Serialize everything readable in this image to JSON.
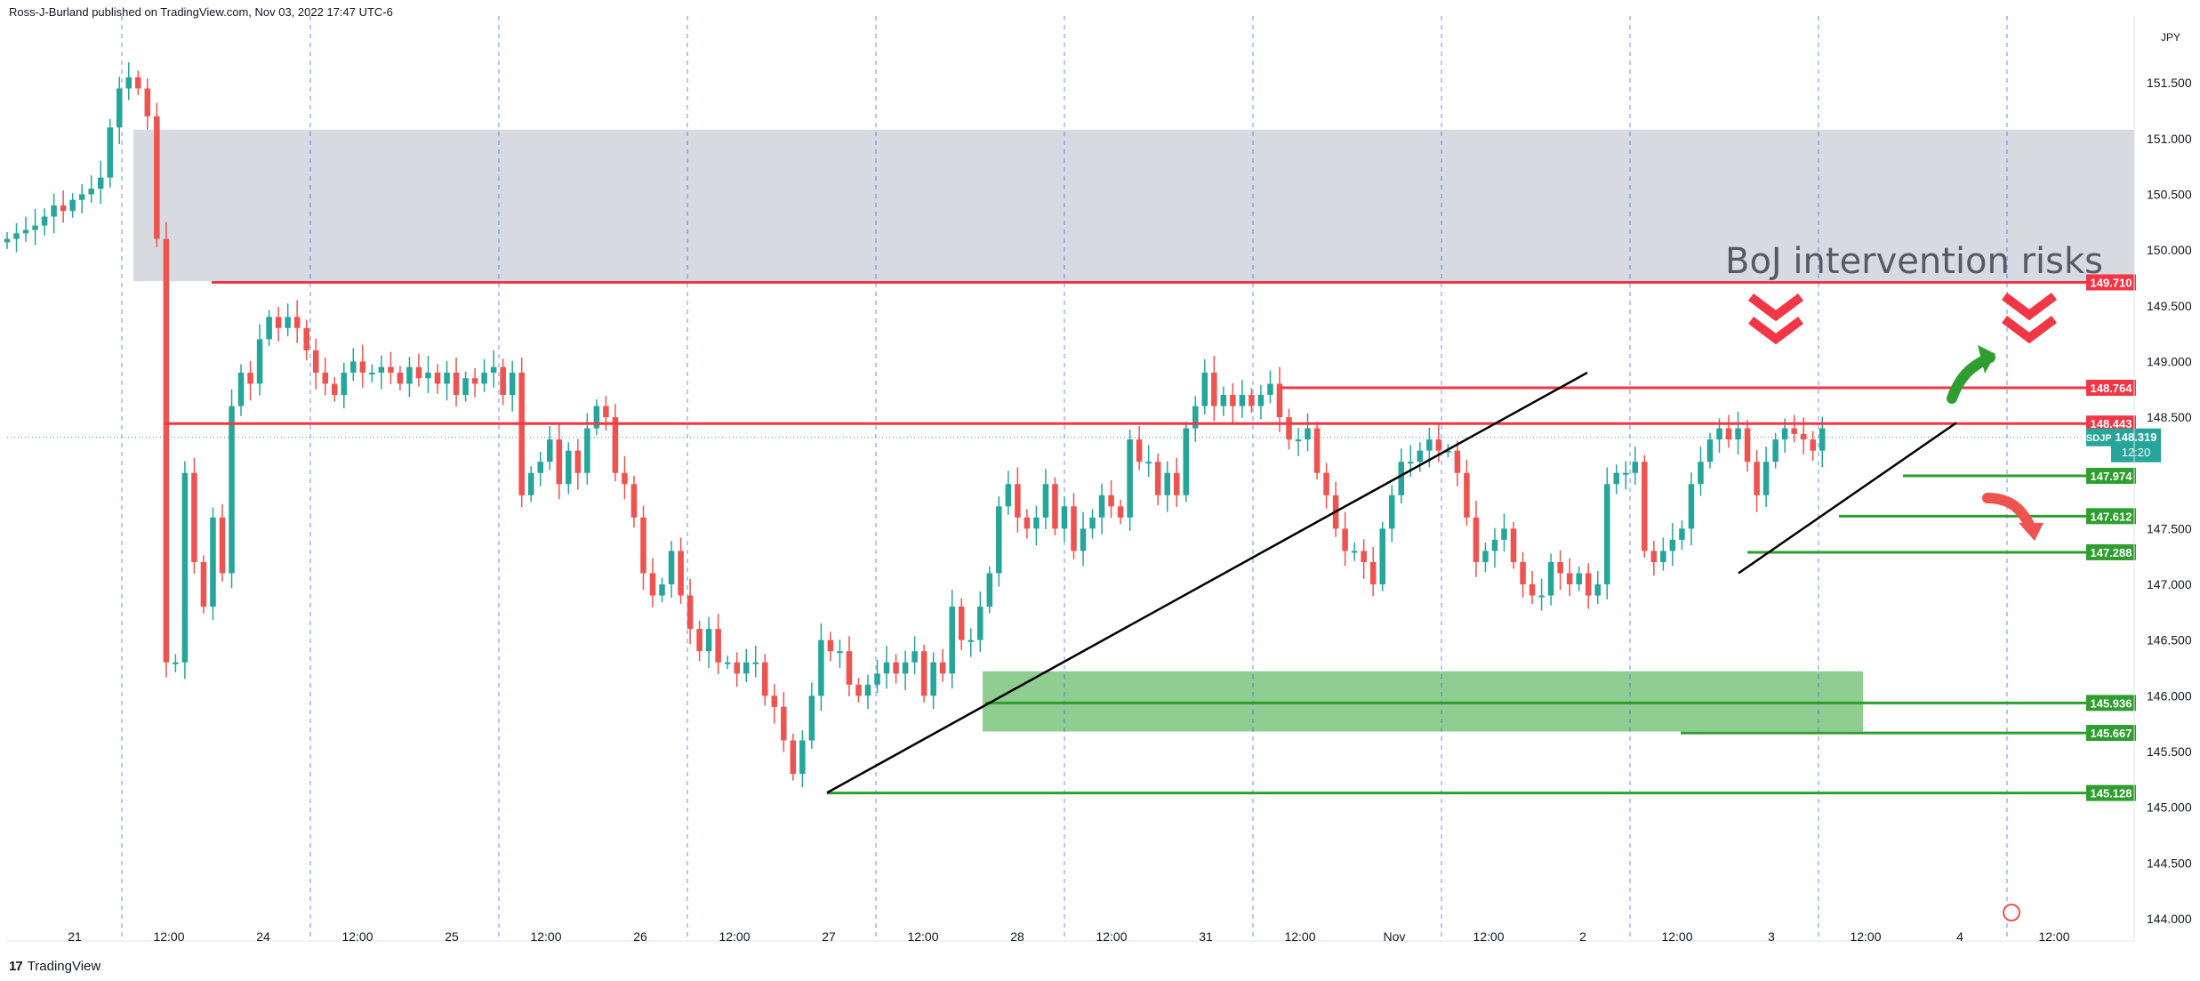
{
  "header": {
    "publisher_line": "Ross-J-Burland published on TradingView.com, Nov 03, 2022 17:47 UTC-6"
  },
  "footer": {
    "brand_logo": "17",
    "brand_name": "TradingView"
  },
  "colors": {
    "up": "#26a69a",
    "down": "#ef5350",
    "resistance": "#f23645",
    "support": "#2e9e2e",
    "supply_zone": "#d1d4dc",
    "demand_zone": "#7cc47c",
    "trendline": "#000000",
    "grid_dash": "#2962ff",
    "symbol_tag": "#26a69a"
  },
  "chart_data": {
    "type": "candlestick",
    "symbol": "USDJPY",
    "currency_label": "JPY",
    "last_price": "148.319",
    "countdown": "12:20",
    "annotation": "BoJ intervention risks",
    "ylim": [
      143.8,
      152.1
    ],
    "y_ticks": [
      "151.500",
      "151.000",
      "150.500",
      "150.000",
      "149.500",
      "149.000",
      "148.500",
      "147.500",
      "147.000",
      "146.500",
      "146.000",
      "145.500",
      "145.000",
      "144.500",
      "144.000"
    ],
    "x_ticks": [
      "21",
      "12:00",
      "24",
      "12:00",
      "25",
      "12:00",
      "26",
      "12:00",
      "27",
      "12:00",
      "28",
      "12:00",
      "31",
      "12:00",
      "Nov",
      "12:00",
      "2",
      "12:00",
      "3",
      "12:00",
      "4",
      "12:00"
    ],
    "resistance_levels": [
      {
        "label": "149.710",
        "value": 149.71
      },
      {
        "label": "148.764",
        "value": 148.764
      },
      {
        "label": "148.443",
        "value": 148.443
      }
    ],
    "support_levels": [
      {
        "label": "147.974",
        "value": 147.974
      },
      {
        "label": "147.612",
        "value": 147.612
      },
      {
        "label": "147.288",
        "value": 147.288
      },
      {
        "label": "145.936",
        "value": 145.936
      },
      {
        "label": "145.667",
        "value": 145.667
      },
      {
        "label": "145.128",
        "value": 145.128
      }
    ],
    "supply_zone": [
      149.72,
      151.08
    ],
    "demand_zone": [
      145.68,
      146.22
    ],
    "closes": [
      150.1,
      150.15,
      150.18,
      150.22,
      150.3,
      150.4,
      150.35,
      150.45,
      150.5,
      150.55,
      150.65,
      151.1,
      151.45,
      151.55,
      151.45,
      151.2,
      150.1,
      146.3,
      146.3,
      148.0,
      147.2,
      146.8,
      147.6,
      147.1,
      148.6,
      148.9,
      148.8,
      149.2,
      149.4,
      149.3,
      149.4,
      149.3,
      149.1,
      148.9,
      148.8,
      148.7,
      148.9,
      149.0,
      148.9,
      148.9,
      148.95,
      148.9,
      148.8,
      148.95,
      148.85,
      148.9,
      148.8,
      148.9,
      148.7,
      148.85,
      148.8,
      148.9,
      148.95,
      148.7,
      148.9,
      147.8,
      148.0,
      148.1,
      148.3,
      147.9,
      148.2,
      148.0,
      148.4,
      148.6,
      148.5,
      148.0,
      147.9,
      147.6,
      147.1,
      146.9,
      147.0,
      147.3,
      146.9,
      146.6,
      146.4,
      146.6,
      146.3,
      146.3,
      146.2,
      146.3,
      146.3,
      146.0,
      145.9,
      145.6,
      145.3,
      145.6,
      146.0,
      146.5,
      146.4,
      146.4,
      146.1,
      146.0,
      146.1,
      146.2,
      146.3,
      146.2,
      146.3,
      146.4,
      146.0,
      146.3,
      146.2,
      146.8,
      146.5,
      146.5,
      146.8,
      147.1,
      147.7,
      147.9,
      147.6,
      147.5,
      147.6,
      147.9,
      147.5,
      147.7,
      147.3,
      147.5,
      147.6,
      147.8,
      147.7,
      147.6,
      148.3,
      148.1,
      148.1,
      147.8,
      148.0,
      147.8,
      148.4,
      148.6,
      148.9,
      148.6,
      148.7,
      148.6,
      148.7,
      148.6,
      148.7,
      148.8,
      148.5,
      148.3,
      148.3,
      148.4,
      148.0,
      147.8,
      147.5,
      147.3,
      147.3,
      147.2,
      147.0,
      147.5,
      147.8,
      148.1,
      148.1,
      148.2,
      148.3,
      148.2,
      148.2,
      148.0,
      147.6,
      147.2,
      147.3,
      147.4,
      147.5,
      147.2,
      147.0,
      146.9,
      146.9,
      147.2,
      147.1,
      147.0,
      147.1,
      146.9,
      147.0,
      147.9,
      148.0,
      148.0,
      148.1,
      147.3,
      147.2,
      147.3,
      147.4,
      147.5,
      147.9,
      148.1,
      148.3,
      148.4,
      148.3,
      148.4,
      148.1,
      147.8,
      148.1,
      148.3,
      148.4,
      148.35,
      148.3,
      148.2,
      148.4
    ],
    "last_bar_day": 9.27
  }
}
